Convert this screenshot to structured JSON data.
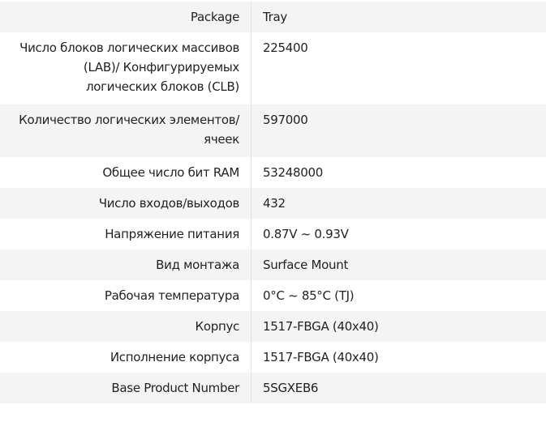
{
  "specs": [
    {
      "label": "Package",
      "value": "Tray"
    },
    {
      "label": "Число блоков логических массивов (LAB)/ Конфигурируемых логических блоков (CLB)",
      "value": "225400"
    },
    {
      "label": "Количество логических элементов/ячеек",
      "value": "597000"
    },
    {
      "label": "Общее число бит RAM",
      "value": "53248000"
    },
    {
      "label": "Число входов/выходов",
      "value": "432"
    },
    {
      "label": "Напряжение питания",
      "value": "0.87V ~ 0.93V"
    },
    {
      "label": "Вид монтажа",
      "value": "Surface Mount"
    },
    {
      "label": "Рабочая температура",
      "value": "0°C ~ 85°C (TJ)"
    },
    {
      "label": "Корпус",
      "value": "1517-FBGA (40x40)"
    },
    {
      "label": "Исполнение корпуса",
      "value": "1517-FBGA (40x40)"
    },
    {
      "label": "Base Product Number",
      "value": "5SGXEB6"
    }
  ]
}
